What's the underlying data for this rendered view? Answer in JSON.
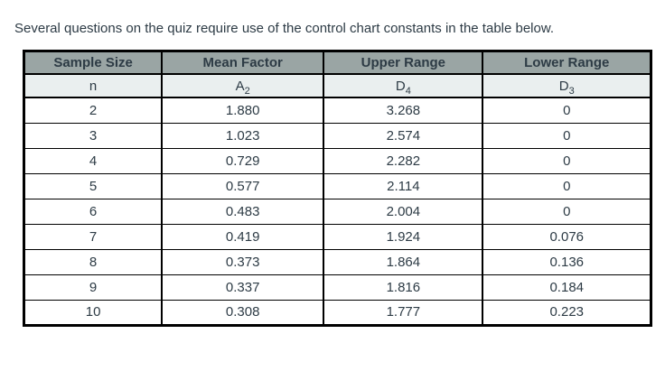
{
  "intro_text": "Several questions on the quiz require use of the control chart constants in the table below.",
  "table": {
    "header_row": [
      "Sample Size",
      "Mean Factor",
      "Upper Range",
      "Lower Range"
    ],
    "symbol_row": [
      {
        "base": "n",
        "sub": ""
      },
      {
        "base": "A",
        "sub": "2"
      },
      {
        "base": "D",
        "sub": "4"
      },
      {
        "base": "D",
        "sub": "3"
      }
    ],
    "rows": [
      [
        "2",
        "1.880",
        "3.268",
        "0"
      ],
      [
        "3",
        "1.023",
        "2.574",
        "0"
      ],
      [
        "4",
        "0.729",
        "2.282",
        "0"
      ],
      [
        "5",
        "0.577",
        "2.114",
        "0"
      ],
      [
        "6",
        "0.483",
        "2.004",
        "0"
      ],
      [
        "7",
        "0.419",
        "1.924",
        "0.076"
      ],
      [
        "8",
        "0.373",
        "1.864",
        "0.136"
      ],
      [
        "9",
        "0.337",
        "1.816",
        "0.184"
      ],
      [
        "10",
        "0.308",
        "1.777",
        "0.223"
      ]
    ]
  },
  "colors": {
    "header_bg": "#9aa5a4",
    "symbol_row_bg": "#eaefef",
    "border": "#000000",
    "text": "#2d3b45",
    "page_bg": "#ffffff"
  }
}
